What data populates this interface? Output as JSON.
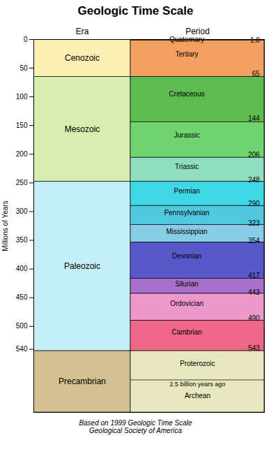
{
  "chart_data": {
    "type": "timeline",
    "title": "Geologic Time Scale",
    "ylabel": "Millions of Years",
    "columns": [
      "Era",
      "Period"
    ],
    "footnote": "Based on 1999 Geologic Time Scale\nGeological Society of America",
    "eras": [
      {
        "name": "Cenozoic",
        "start": 0,
        "end": 65,
        "color": "#FAF0B0"
      },
      {
        "name": "Mesozoic",
        "start": 65,
        "end": 248,
        "color": "#D8EDB0"
      },
      {
        "name": "Paleozoic",
        "start": 248,
        "end": 543,
        "color": "#C4EEF8"
      },
      {
        "name": "Precambrian",
        "start": 543,
        "end": 650,
        "color": "#D4C090"
      }
    ],
    "periods": [
      {
        "name": "Quaternary",
        "start": 0,
        "end": 1.8,
        "color": "#FFFFF0"
      },
      {
        "name": "Tertiary",
        "start": 1.8,
        "end": 65,
        "color": "#F5A060"
      },
      {
        "name": "Cretaceous",
        "start": 65,
        "end": 144,
        "color": "#5DBB50"
      },
      {
        "name": "Jurassic",
        "start": 144,
        "end": 206,
        "color": "#70D470"
      },
      {
        "name": "Triassic",
        "start": 206,
        "end": 248,
        "color": "#90DFC0"
      },
      {
        "name": "Permian",
        "start": 248,
        "end": 290,
        "color": "#40D8E8"
      },
      {
        "name": "Pennsylvanian",
        "start": 290,
        "end": 323,
        "color": "#50C8E0"
      },
      {
        "name": "Mississippian",
        "start": 323,
        "end": 354,
        "color": "#88CCE8"
      },
      {
        "name": "Devonian",
        "start": 354,
        "end": 417,
        "color": "#5858C8"
      },
      {
        "name": "Silurian",
        "start": 417,
        "end": 443,
        "color": "#A870CC"
      },
      {
        "name": "Ordovician",
        "start": 443,
        "end": 490,
        "color": "#EE99CC"
      },
      {
        "name": "Cambrian",
        "start": 490,
        "end": 543,
        "color": "#EE6688"
      }
    ],
    "precambrian_period": {
      "start": 543,
      "end": 650,
      "color": "#E8E8C0",
      "upper": "Proterozoic",
      "divider_label": "2.5 billion years ago",
      "lower": "Archean"
    },
    "data_labels": true,
    "grid": false,
    "ylim": [
      650,
      0
    ],
    "yticks": [
      0,
      50,
      100,
      150,
      200,
      250,
      300,
      350,
      400,
      450,
      500,
      540
    ]
  }
}
